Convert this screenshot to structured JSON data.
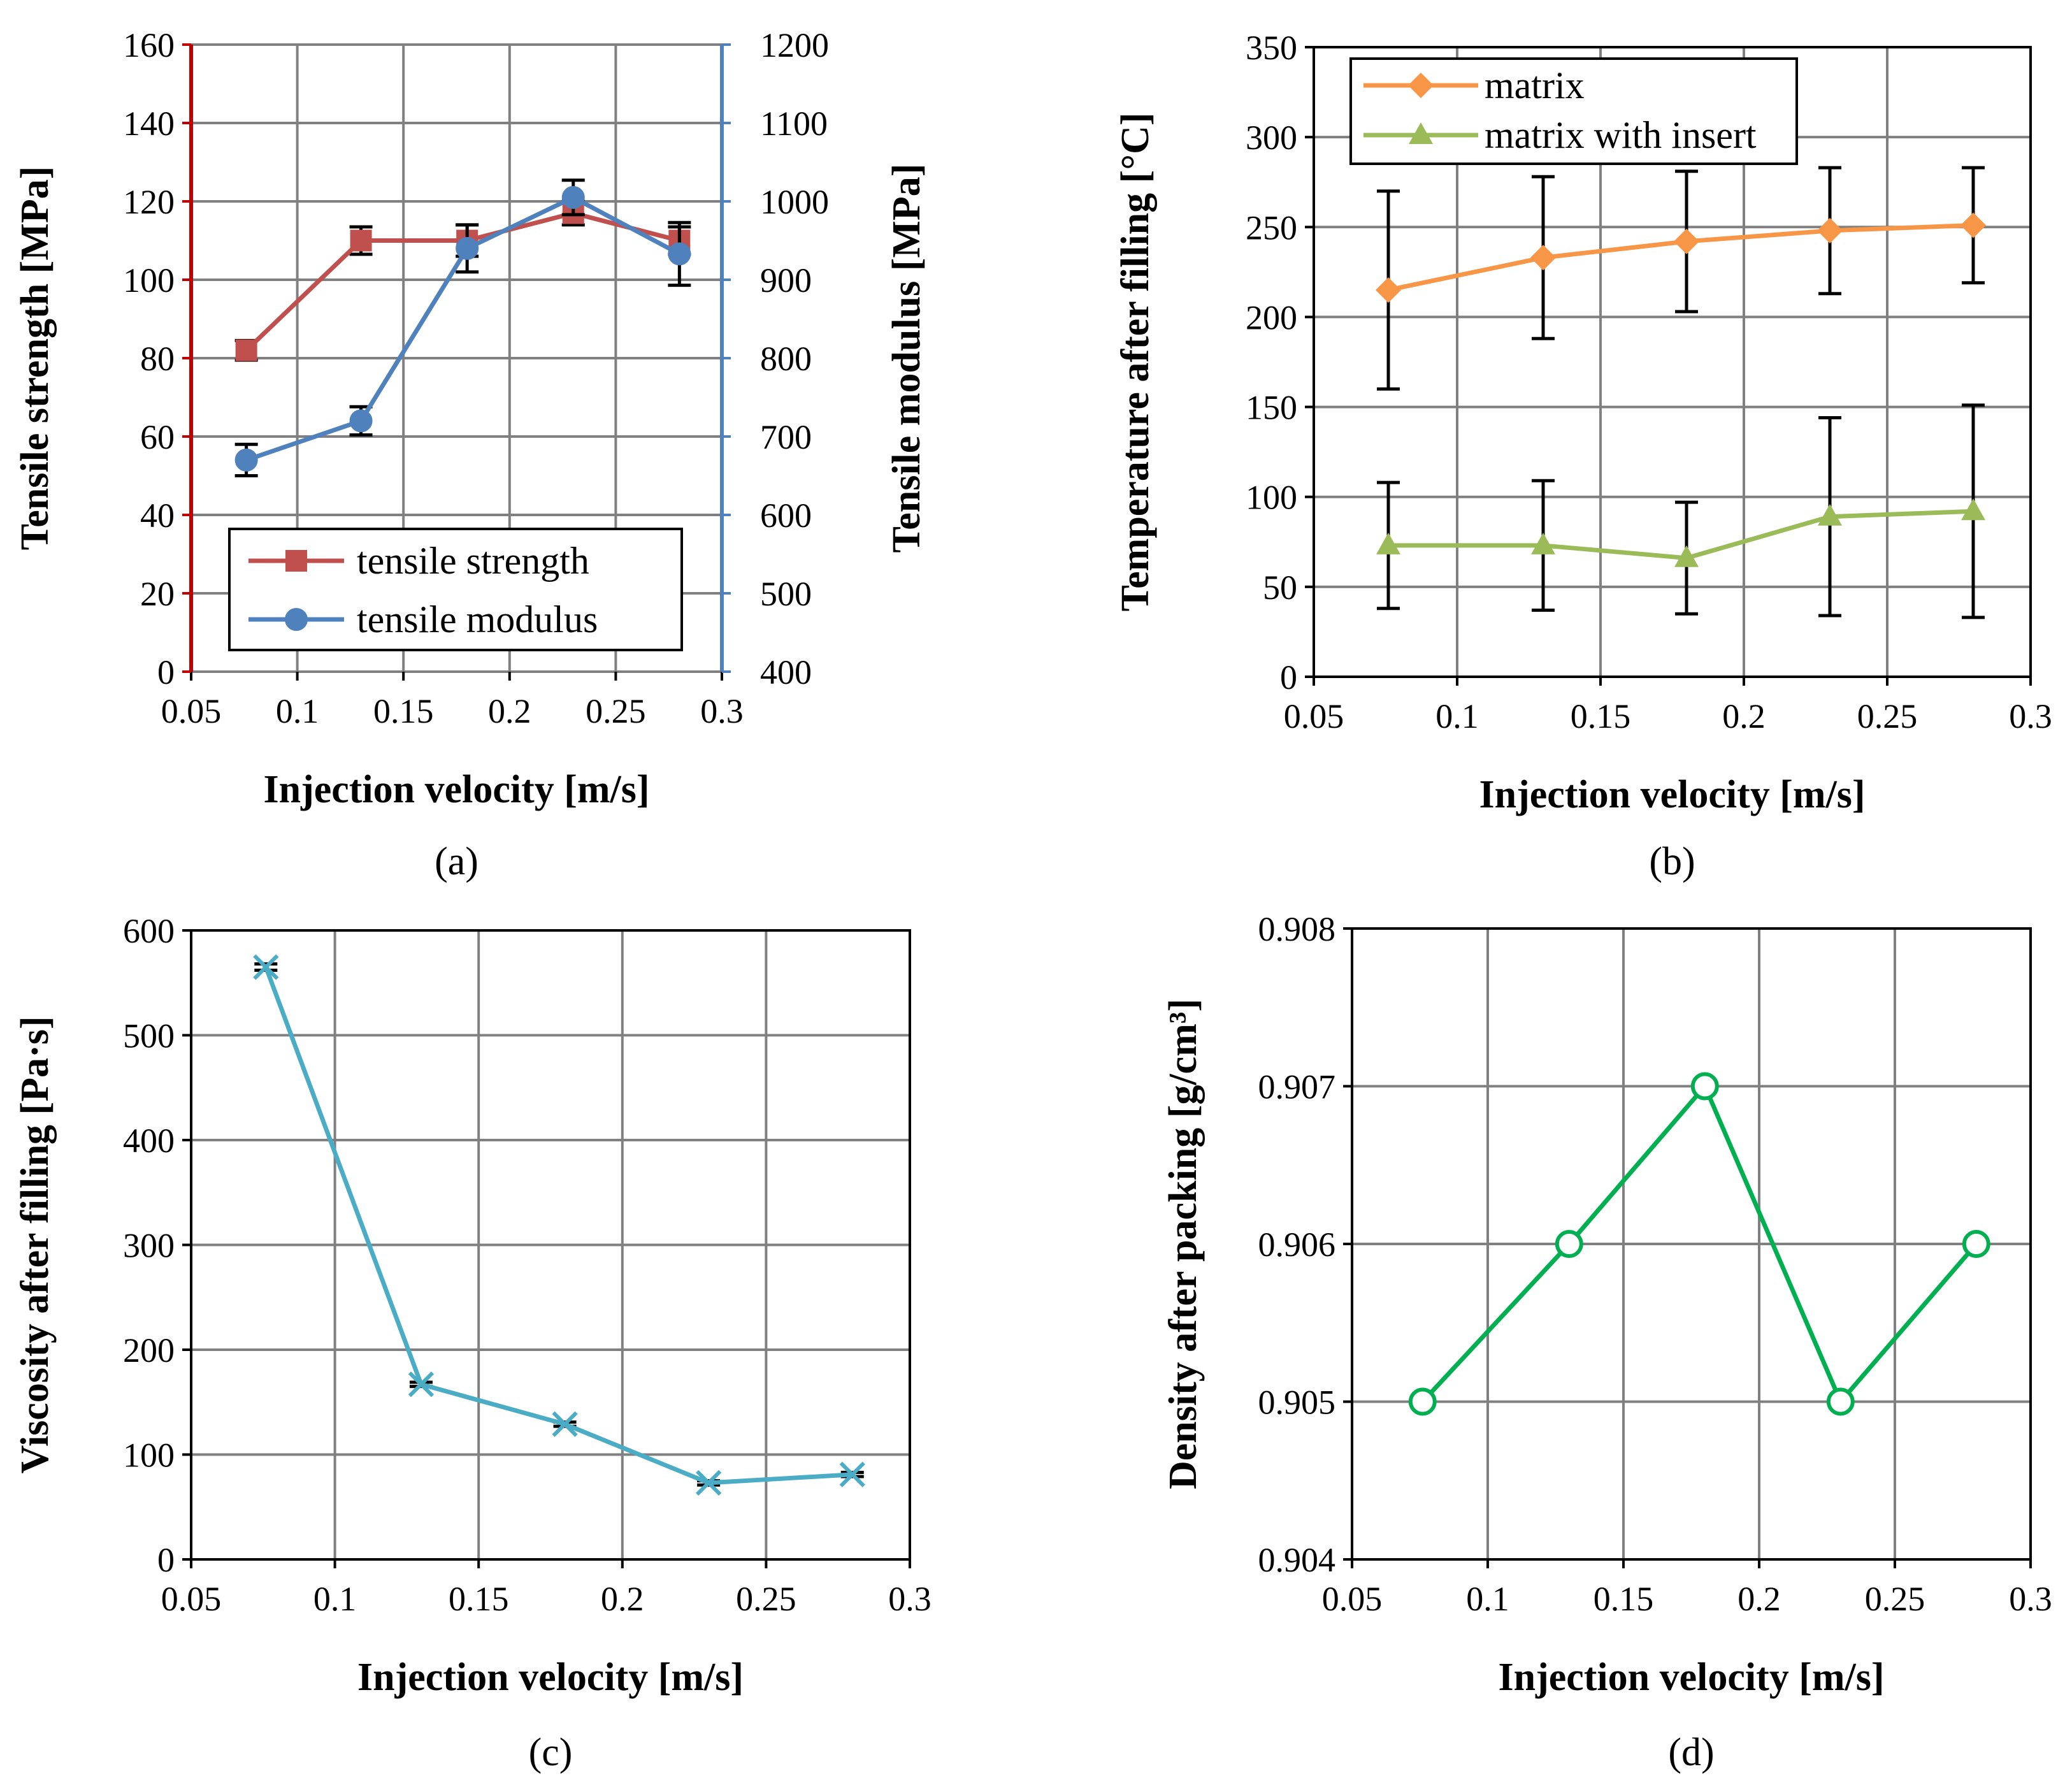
{
  "figure": {
    "panel_labels": [
      "(a)",
      "(b)",
      "(c)",
      "(d)"
    ]
  },
  "chart_data": [
    {
      "panel": "a",
      "type": "line",
      "xlabel": "Injection velocity [m/s]",
      "ylabel": "Tensile strength [MPa]",
      "y2label": "Tensile modulus [MPa]",
      "xlim": [
        0.05,
        0.3
      ],
      "xticks": [
        0.05,
        0.1,
        0.15,
        0.2,
        0.25,
        0.3
      ],
      "xtick_labels": [
        "0.05",
        "0.1",
        "0.15",
        "0.2",
        "0.25",
        "0.3"
      ],
      "ylim": [
        0,
        160
      ],
      "yticks": [
        0,
        20,
        40,
        60,
        80,
        100,
        120,
        140,
        160
      ],
      "y2lim": [
        400,
        1200
      ],
      "y2ticks": [
        400,
        500,
        600,
        700,
        800,
        900,
        1000,
        1100,
        1200
      ],
      "legend_position": "bottom-right",
      "left_axis_color": "#c00000",
      "right_axis_color": "#4f81bd",
      "series": [
        {
          "name": "tensile strength",
          "axis": "left",
          "color": "#c0504d",
          "marker": "square",
          "x": [
            0.076,
            0.13,
            0.18,
            0.23,
            0.28
          ],
          "values": [
            82,
            110,
            110,
            117,
            110
          ],
          "errors": [
            2.5,
            3.5,
            4,
            3,
            3.5
          ]
        },
        {
          "name": "tensile modulus",
          "axis": "right",
          "color": "#4f81bd",
          "marker": "circle",
          "x": [
            0.076,
            0.13,
            0.18,
            0.23,
            0.28
          ],
          "values": [
            670,
            720,
            940,
            1005,
            933
          ],
          "errors": [
            20,
            18,
            30,
            22,
            40
          ]
        }
      ]
    },
    {
      "panel": "b",
      "type": "line",
      "xlabel": "Injection velocity [m/s]",
      "ylabel": "Temperature after filling [°C]",
      "xlim": [
        0.05,
        0.3
      ],
      "xticks": [
        0.05,
        0.1,
        0.15,
        0.2,
        0.25,
        0.3
      ],
      "xtick_labels": [
        "0.05",
        "0.1",
        "0.15",
        "0.2",
        "0.25",
        "0.3"
      ],
      "ylim": [
        0,
        350
      ],
      "yticks": [
        0,
        50,
        100,
        150,
        200,
        250,
        300,
        350
      ],
      "legend_position": "top-left",
      "series": [
        {
          "name": "matrix",
          "color": "#f79646",
          "marker": "diamond",
          "x": [
            0.076,
            0.13,
            0.18,
            0.23,
            0.28
          ],
          "values": [
            215,
            233,
            242,
            248,
            251
          ],
          "errors": [
            55,
            45,
            39,
            35,
            32
          ]
        },
        {
          "name": "matrix with insert",
          "color": "#9bbb59",
          "marker": "triangle",
          "x": [
            0.076,
            0.13,
            0.18,
            0.23,
            0.28
          ],
          "values": [
            73,
            73,
            66,
            89,
            92
          ],
          "errors": [
            35,
            36,
            31,
            55,
            59
          ]
        }
      ]
    },
    {
      "panel": "c",
      "type": "line",
      "xlabel": "Injection velocity [m/s]",
      "ylabel": "Viscosity after filling [Pa·s]",
      "xlim": [
        0.05,
        0.3
      ],
      "xticks": [
        0.05,
        0.1,
        0.15,
        0.2,
        0.25,
        0.3
      ],
      "xtick_labels": [
        "0.05",
        "0.1",
        "0.15",
        "0.2",
        "0.25",
        "0.3"
      ],
      "ylim": [
        0,
        600
      ],
      "yticks": [
        0,
        100,
        200,
        300,
        400,
        500,
        600
      ],
      "series": [
        {
          "name": "viscosity",
          "color": "#4bacc6",
          "marker": "x",
          "x": [
            0.076,
            0.13,
            0.18,
            0.23,
            0.28
          ],
          "values": [
            565,
            167,
            129,
            73,
            81
          ],
          "errors": [
            3,
            2,
            2,
            2,
            2
          ]
        }
      ]
    },
    {
      "panel": "d",
      "type": "line",
      "xlabel": "Injection velocity [m/s]",
      "ylabel": "Density after packing [g/cm³]",
      "xlim": [
        0.05,
        0.3
      ],
      "xticks": [
        0.05,
        0.1,
        0.15,
        0.2,
        0.25,
        0.3
      ],
      "xtick_labels": [
        "0.05",
        "0.1",
        "0.15",
        "0.2",
        "0.25",
        "0.3"
      ],
      "ylim": [
        0.904,
        0.908
      ],
      "yticks": [
        0.904,
        0.905,
        0.906,
        0.907,
        0.908
      ],
      "ytick_labels": [
        "0.904",
        "0.905",
        "0.906",
        "0.907",
        "0.908"
      ],
      "series": [
        {
          "name": "density",
          "color": "#00b050",
          "marker": "open-circle",
          "x": [
            0.076,
            0.13,
            0.18,
            0.23,
            0.28
          ],
          "values": [
            0.905,
            0.906,
            0.907,
            0.905,
            0.906
          ]
        }
      ]
    }
  ]
}
